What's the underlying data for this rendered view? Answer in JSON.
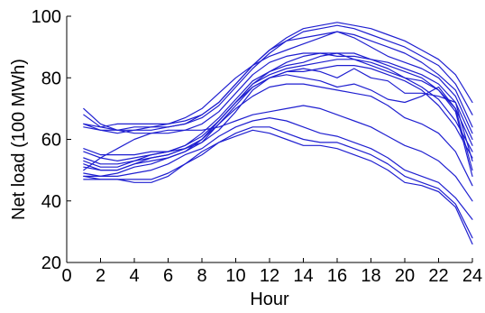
{
  "chart_data": {
    "type": "line",
    "title": "",
    "xlabel": "Hour",
    "ylabel": "Net load (100 MWh)",
    "xlim": [
      0,
      24
    ],
    "ylim": [
      20,
      100
    ],
    "xticks": [
      0,
      2,
      4,
      6,
      8,
      10,
      12,
      14,
      16,
      18,
      20,
      22,
      24
    ],
    "yticks": [
      20,
      40,
      60,
      80,
      100
    ],
    "grid": false,
    "legend": "none",
    "line_color": "#1f1fd0",
    "x": [
      1,
      2,
      3,
      4,
      5,
      6,
      7,
      8,
      9,
      10,
      11,
      12,
      13,
      14,
      15,
      16,
      17,
      18,
      19,
      20,
      21,
      22,
      23,
      24
    ],
    "series": [
      {
        "values": [
          65,
          64,
          65,
          65,
          65,
          65,
          66,
          68,
          72,
          78,
          84,
          89,
          93,
          96,
          97,
          98,
          97,
          96,
          94,
          92,
          89,
          86,
          81,
          72
        ]
      },
      {
        "values": [
          64,
          63,
          63,
          64,
          64,
          64,
          65,
          67,
          71,
          77,
          83,
          88,
          92,
          95,
          96,
          97,
          96,
          94,
          92,
          90,
          87,
          84,
          78,
          68
        ]
      },
      {
        "values": [
          65,
          63,
          62,
          63,
          63,
          64,
          65,
          68,
          72,
          78,
          84,
          89,
          92,
          93,
          94,
          95,
          94,
          92,
          90,
          88,
          85,
          81,
          76,
          64
        ]
      },
      {
        "values": [
          68,
          64,
          63,
          63,
          64,
          65,
          67,
          70,
          75,
          80,
          84,
          87,
          89,
          91,
          93,
          95,
          93,
          90,
          87,
          85,
          83,
          80,
          74,
          62
        ]
      },
      {
        "values": [
          70,
          65,
          63,
          62,
          62,
          62,
          63,
          65,
          69,
          75,
          81,
          85,
          87,
          88,
          88,
          87,
          87,
          86,
          85,
          83,
          81,
          78,
          72,
          60
        ]
      },
      {
        "values": [
          53,
          51,
          51,
          53,
          55,
          56,
          58,
          62,
          67,
          73,
          79,
          82,
          84,
          85,
          87,
          88,
          88,
          86,
          84,
          82,
          80,
          76,
          70,
          58
        ]
      },
      {
        "values": [
          54,
          52,
          52,
          53,
          54,
          55,
          57,
          60,
          66,
          72,
          78,
          81,
          83,
          84,
          85,
          86,
          86,
          85,
          83,
          80,
          77,
          73,
          66,
          56
        ]
      },
      {
        "values": [
          52,
          50,
          50,
          52,
          53,
          54,
          56,
          59,
          65,
          71,
          77,
          80,
          82,
          82,
          83,
          84,
          84,
          83,
          81,
          79,
          76,
          71,
          64,
          54
        ]
      },
      {
        "values": [
          57,
          55,
          55,
          55,
          56,
          56,
          57,
          59,
          63,
          69,
          76,
          80,
          82,
          83,
          82,
          80,
          83,
          80,
          79,
          75,
          75,
          74,
          72,
          53
        ]
      },
      {
        "values": [
          56,
          54,
          53,
          54,
          55,
          56,
          58,
          61,
          66,
          72,
          77,
          80,
          81,
          80,
          79,
          77,
          78,
          76,
          73,
          72,
          74,
          77,
          70,
          50
        ]
      },
      {
        "values": [
          49,
          48,
          49,
          51,
          52,
          54,
          56,
          60,
          66,
          72,
          78,
          82,
          85,
          87,
          88,
          88,
          86,
          84,
          82,
          80,
          79,
          76,
          69,
          48
        ]
      },
      {
        "values": [
          51,
          50,
          50,
          52,
          54,
          55,
          57,
          60,
          65,
          70,
          74,
          77,
          78,
          78,
          77,
          76,
          75,
          74,
          71,
          67,
          65,
          62,
          56,
          45
        ]
      },
      {
        "values": [
          50,
          54,
          57,
          60,
          62,
          63,
          63,
          63,
          64,
          66,
          68,
          69,
          70,
          71,
          70,
          68,
          66,
          64,
          61,
          58,
          56,
          53,
          48,
          40
        ]
      },
      {
        "values": [
          48,
          48,
          48,
          49,
          50,
          52,
          55,
          57,
          61,
          64,
          66,
          67,
          66,
          64,
          62,
          61,
          59,
          57,
          54,
          50,
          48,
          46,
          41,
          34
        ]
      },
      {
        "values": [
          47,
          47,
          47,
          46,
          46,
          48,
          52,
          55,
          59,
          62,
          64,
          64,
          62,
          60,
          59,
          59,
          57,
          55,
          52,
          48,
          46,
          44,
          39,
          28
        ]
      },
      {
        "values": [
          48,
          47,
          47,
          47,
          47,
          49,
          52,
          56,
          59,
          61,
          63,
          62,
          60,
          58,
          58,
          57,
          55,
          53,
          50,
          46,
          45,
          43,
          38,
          26
        ]
      }
    ]
  }
}
